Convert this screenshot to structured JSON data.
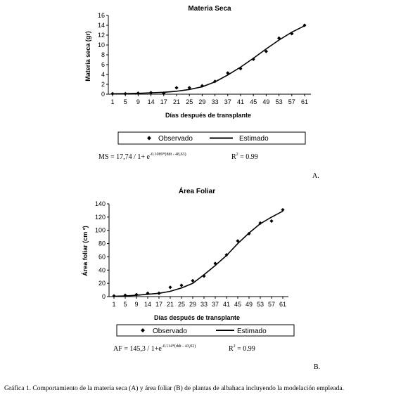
{
  "chart_data": [
    {
      "type": "scatter",
      "title": "Materia Seca",
      "xlabel": "Días después de transplante",
      "ylabel": "Materia seca (gr)",
      "xticks": [
        "1",
        "5",
        "9",
        "14",
        "17",
        "21",
        "25",
        "29",
        "33",
        "37",
        "41",
        "45",
        "49",
        "53",
        "57",
        "61"
      ],
      "ylim": [
        0,
        16
      ],
      "yticks": [
        0,
        2,
        4,
        6,
        8,
        10,
        12,
        14,
        16
      ],
      "series": [
        {
          "name": "Observado",
          "marker": "diamond",
          "points": [
            [
              1,
              0.1
            ],
            [
              5,
              0.1
            ],
            [
              9,
              0.2
            ],
            [
              14,
              0.3
            ],
            [
              17,
              0.2
            ],
            [
              21,
              1.3
            ],
            [
              25,
              1.3
            ],
            [
              29,
              1.7
            ],
            [
              33,
              2.6
            ],
            [
              37,
              4.3
            ],
            [
              41,
              5.2
            ],
            [
              45,
              7.1
            ],
            [
              49,
              8.7
            ],
            [
              53,
              11.4
            ],
            [
              57,
              12.3
            ],
            [
              61,
              14.0
            ]
          ]
        },
        {
          "name": "Estimado",
          "line": true,
          "points": [
            [
              1,
              0.08
            ],
            [
              5,
              0.11
            ],
            [
              9,
              0.17
            ],
            [
              14,
              0.27
            ],
            [
              17,
              0.38
            ],
            [
              21,
              0.6
            ],
            [
              25,
              0.95
            ],
            [
              29,
              1.5
            ],
            [
              33,
              2.5
            ],
            [
              37,
              3.9
            ],
            [
              41,
              5.5
            ],
            [
              45,
              7.3
            ],
            [
              49,
              9.2
            ],
            [
              53,
              11.0
            ],
            [
              57,
              12.6
            ],
            [
              61,
              13.9
            ]
          ]
        }
      ],
      "legend_position": "bottom",
      "formula": "MS = 17,74 / 1+ e",
      "formula_exponent": "-0.1089*(ddt - 48,63)",
      "r2_label": "R",
      "r2_sup": "2",
      "r2_value": " = 0.99",
      "panel_label": "A."
    },
    {
      "type": "scatter",
      "title": "Área Foliar",
      "xlabel": "Días después de transplante",
      "ylabel": "Área foliar (cm ²)",
      "xticks": [
        "1",
        "5",
        "9",
        "14",
        "17",
        "21",
        "25",
        "29",
        "33",
        "37",
        "41",
        "45",
        "49",
        "53",
        "57",
        "61"
      ],
      "ylim": [
        0,
        140
      ],
      "yticks": [
        0,
        20,
        40,
        60,
        80,
        100,
        120,
        140
      ],
      "series": [
        {
          "name": "Observado",
          "marker": "diamond",
          "points": [
            [
              1,
              1
            ],
            [
              5,
              2
            ],
            [
              9,
              3
            ],
            [
              14,
              5
            ],
            [
              17,
              5
            ],
            [
              21,
              14
            ],
            [
              25,
              17
            ],
            [
              29,
              24
            ],
            [
              33,
              31
            ],
            [
              37,
              50
            ],
            [
              41,
              63
            ],
            [
              45,
              84
            ],
            [
              49,
              95
            ],
            [
              53,
              111
            ],
            [
              57,
              114
            ],
            [
              61,
              131
            ]
          ]
        },
        {
          "name": "Estimado",
          "line": true,
          "points": [
            [
              1,
              0.5
            ],
            [
              5,
              1
            ],
            [
              9,
              2
            ],
            [
              14,
              3.5
            ],
            [
              17,
              5
            ],
            [
              21,
              8
            ],
            [
              25,
              13
            ],
            [
              29,
              20
            ],
            [
              33,
              33
            ],
            [
              37,
              47
            ],
            [
              41,
              62
            ],
            [
              45,
              80
            ],
            [
              49,
              96
            ],
            [
              53,
              110
            ],
            [
              57,
              120
            ],
            [
              61,
              129
            ]
          ]
        }
      ],
      "legend_position": "bottom",
      "formula": "AF = 145,3 / 1+e",
      "formula_exponent": "-0.114*(ddt - 43,02)",
      "r2_label": "R",
      "r2_sup": "2",
      "r2_value": " = 0.99",
      "panel_label": "B."
    }
  ],
  "caption": "Gráfica 1. Comportamiento de la materia seca (A) y área foliar (B) de plantas de albahaca incluyendo la modelación empleada."
}
